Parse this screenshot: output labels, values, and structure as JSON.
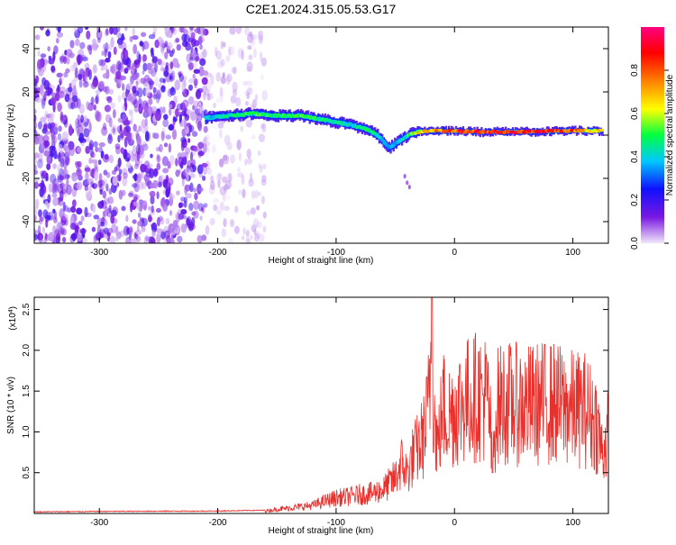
{
  "page_title": "C2E1.2024.315.05.53.G17",
  "chart_data": [
    {
      "type": "heatmap",
      "title": "C2E1.2024.315.05.53.G17",
      "xlabel": "Height of straight line (km)",
      "ylabel": "Frequency (Hz)",
      "xlim": [
        -355,
        130
      ],
      "ylim": [
        -50,
        50
      ],
      "x_ticks": [
        -300,
        -200,
        -100,
        0,
        100
      ],
      "x_tick_labels": [
        "-300",
        "-200",
        "-100",
        "0",
        "100"
      ],
      "y_ticks": [
        -40,
        -20,
        0,
        20,
        40
      ],
      "y_tick_labels": [
        "-40",
        "-20",
        "0",
        "20",
        "40"
      ],
      "colorbar": {
        "label": "Normalized spectral amplitude",
        "range": [
          0,
          1
        ],
        "ticks": [
          0.0,
          0.2,
          0.4,
          0.6,
          0.8
        ],
        "tick_labels": [
          "0.0",
          "0.2",
          "0.4",
          "0.6",
          "0.8"
        ],
        "colors": [
          "#f0e8fa",
          "#7a18e0",
          "#1010ff",
          "#00c8ff",
          "#00ff40",
          "#ffff00",
          "#ff8000",
          "#ff0000",
          "#ff0080"
        ]
      },
      "noise_region": {
        "x_start": -355,
        "x_end": -160,
        "dense_until": -210,
        "amplitude": [
          0.02,
          0.2
        ]
      },
      "ridge": [
        {
          "x": -210,
          "freq": 8,
          "amp": 0.4
        },
        {
          "x": -190,
          "freq": 9,
          "amp": 0.5
        },
        {
          "x": -170,
          "freq": 10,
          "amp": 0.55
        },
        {
          "x": -150,
          "freq": 9,
          "amp": 0.5
        },
        {
          "x": -130,
          "freq": 9,
          "amp": 0.55
        },
        {
          "x": -110,
          "freq": 7,
          "amp": 0.5
        },
        {
          "x": -90,
          "freq": 5,
          "amp": 0.45
        },
        {
          "x": -75,
          "freq": 3,
          "amp": 0.5
        },
        {
          "x": -65,
          "freq": 0,
          "amp": 0.45
        },
        {
          "x": -55,
          "freq": -6,
          "amp": 0.35
        },
        {
          "x": -45,
          "freq": -2,
          "amp": 0.4
        },
        {
          "x": -35,
          "freq": 1,
          "amp": 0.6
        },
        {
          "x": -25,
          "freq": 2,
          "amp": 0.75
        },
        {
          "x": -10,
          "freq": 2,
          "amp": 0.85
        },
        {
          "x": 20,
          "freq": 1.5,
          "amp": 0.9
        },
        {
          "x": 60,
          "freq": 1.5,
          "amp": 0.9
        },
        {
          "x": 90,
          "freq": 2,
          "amp": 0.9
        },
        {
          "x": 125,
          "freq": 2,
          "amp": 0.7
        }
      ]
    },
    {
      "type": "line",
      "xlabel": "Height of straight line (km)",
      "ylabel": "SNR (10 * v/v)",
      "y_multiplier": "(x10",
      "y_multiplier_exp": "4",
      "y_multiplier_close": ")",
      "xlim": [
        -355,
        130
      ],
      "ylim": [
        0,
        26500
      ],
      "x_ticks": [
        -300,
        -200,
        -100,
        0,
        100
      ],
      "x_tick_labels": [
        "-300",
        "-200",
        "-100",
        "0",
        "100"
      ],
      "y_ticks": [
        5000,
        10000,
        15000,
        20000,
        25000
      ],
      "y_tick_labels": [
        "0.5",
        "1.0",
        "1.5",
        "2.0",
        "2.5"
      ],
      "series": [
        {
          "color": "#e8302c",
          "points": [
            [
              -355,
              200
            ],
            [
              -300,
              250
            ],
            [
              -250,
              280
            ],
            [
              -200,
              300
            ],
            [
              -160,
              400
            ],
            [
              -140,
              800
            ],
            [
              -120,
              1200
            ],
            [
              -110,
              1800
            ],
            [
              -100,
              2300
            ],
            [
              -90,
              2500
            ],
            [
              -80,
              2800
            ],
            [
              -70,
              3000
            ],
            [
              -60,
              3600
            ],
            [
              -50,
              5200
            ],
            [
              -45,
              7500
            ],
            [
              -40,
              6000
            ],
            [
              -35,
              8500
            ],
            [
              -30,
              10000
            ],
            [
              -25,
              12000
            ],
            [
              -22,
              16000
            ],
            [
              -19,
              26500
            ],
            [
              -17,
              14000
            ],
            [
              -14,
              10000
            ],
            [
              -10,
              16000
            ],
            [
              -5,
              14500
            ],
            [
              0,
              15500
            ],
            [
              10,
              16800
            ],
            [
              20,
              17500
            ],
            [
              28,
              17000
            ],
            [
              30,
              14000
            ],
            [
              32,
              5500
            ],
            [
              35,
              15500
            ],
            [
              40,
              16500
            ],
            [
              60,
              16000
            ],
            [
              80,
              16500
            ],
            [
              100,
              15500
            ],
            [
              110,
              15500
            ],
            [
              120,
              13500
            ],
            [
              125,
              9000
            ],
            [
              130,
              12000
            ]
          ]
        }
      ]
    }
  ]
}
